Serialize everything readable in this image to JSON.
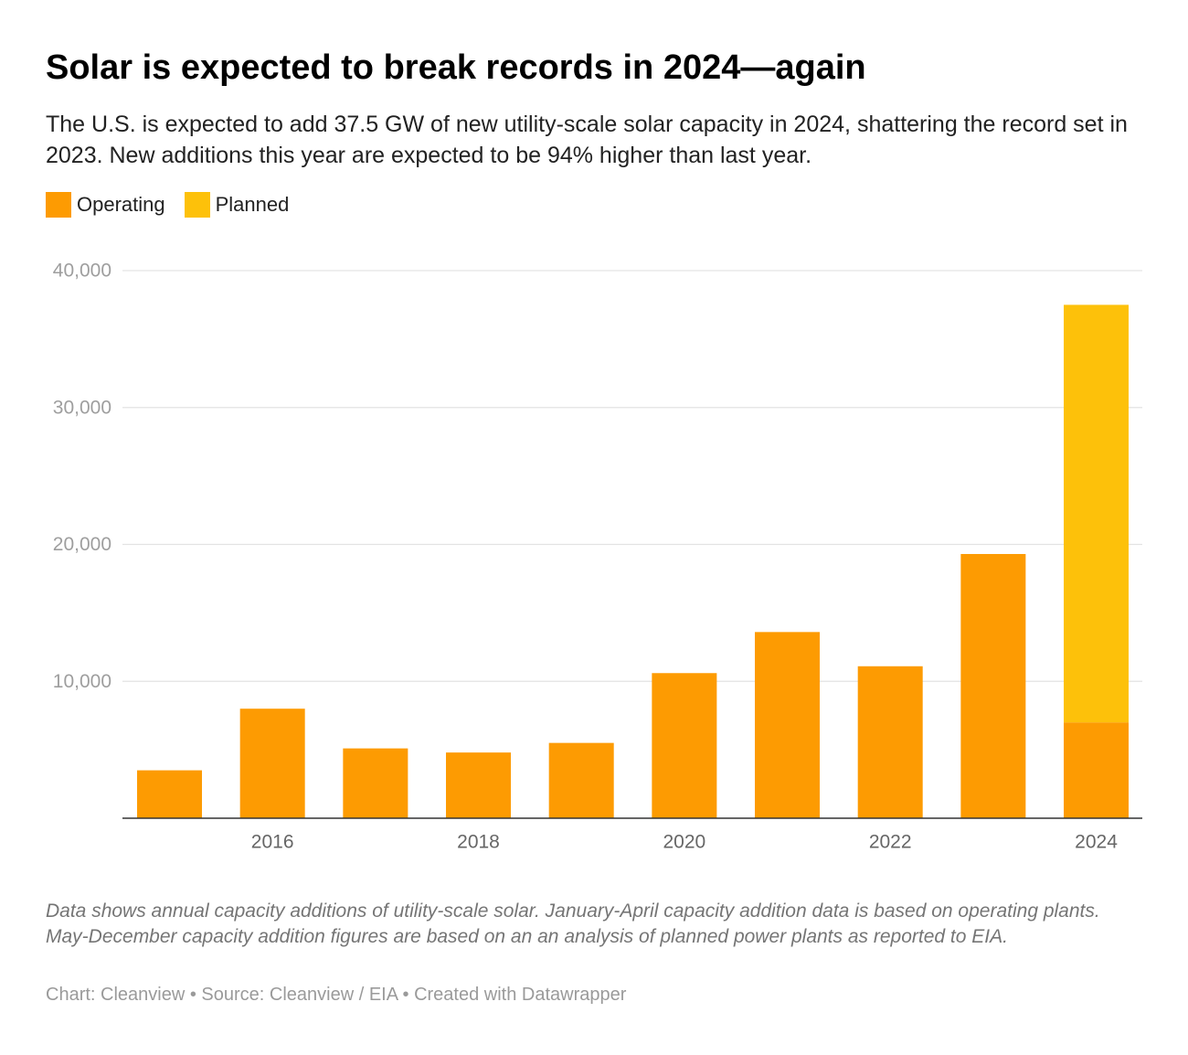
{
  "title": "Solar is expected to break records in 2024—again",
  "subtitle": "The U.S. is expected to add 37.5 GW of new utility-scale solar capacity in 2024, shattering the record set in 2023. New additions this year are expected to be 94% higher than last year.",
  "legend": [
    {
      "label": "Operating",
      "color": "#fd9b02"
    },
    {
      "label": "Planned",
      "color": "#fdc10a"
    }
  ],
  "notes": "Data shows annual capacity additions of utility-scale solar. January-April capacity addition data is based on operating plants. May-December capacity addition figures are based on an an analysis of planned power plants as reported to EIA.",
  "credit": "Chart: Cleanview • Source: Cleanview / EIA • Created with Datawrapper",
  "chart_data": {
    "type": "bar",
    "stacked": true,
    "x": [
      2015,
      2016,
      2017,
      2018,
      2019,
      2020,
      2021,
      2022,
      2023,
      2024
    ],
    "series": [
      {
        "name": "Operating",
        "color": "#fd9b02",
        "values": [
          3500,
          8000,
          5100,
          4800,
          5500,
          10600,
          13600,
          11100,
          19300,
          7000
        ]
      },
      {
        "name": "Planned",
        "color": "#fdc10a",
        "values": [
          0,
          0,
          0,
          0,
          0,
          0,
          0,
          0,
          0,
          30500
        ]
      }
    ],
    "ylim": [
      0,
      40000
    ],
    "y_ticks": [
      10000,
      20000,
      30000,
      40000
    ],
    "y_tick_labels": [
      "10,000",
      "20,000",
      "30,000",
      "40,000"
    ],
    "x_tick_labels": [
      "2016",
      "2018",
      "2020",
      "2022",
      "2024"
    ],
    "grid": true,
    "legend_position": "top-left",
    "colors": {
      "gridline": "#e3e3e3",
      "axis": "#333333",
      "y_tick_text": "#9e9e9e",
      "x_tick_text": "#666666"
    }
  }
}
